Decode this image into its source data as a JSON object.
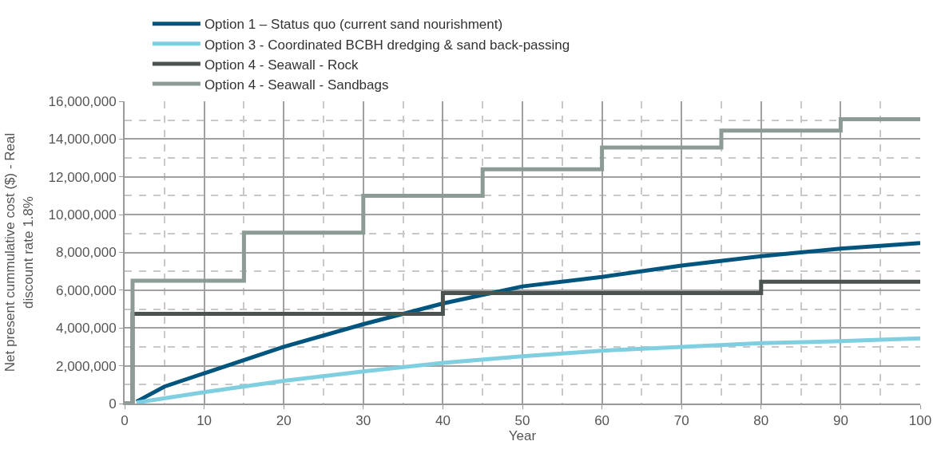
{
  "chart_data": {
    "type": "line",
    "xlabel": "Year",
    "ylabel": "Net present cummulative cost ($) - Real discount rate 1.8%",
    "xlim": [
      0,
      100
    ],
    "xticks": [
      0,
      10,
      20,
      30,
      40,
      50,
      60,
      70,
      80,
      90,
      100
    ],
    "ylim": [
      0,
      16000000
    ],
    "yticks": [
      {
        "value": 0,
        "label": "0"
      },
      {
        "value": 2000000,
        "label": "2,000,000"
      },
      {
        "value": 4000000,
        "label": "4,000,000"
      },
      {
        "value": 6000000,
        "label": "6,000,000"
      },
      {
        "value": 8000000,
        "label": "8,000,000"
      },
      {
        "value": 10000000,
        "label": "10,000,000"
      },
      {
        "value": 12000000,
        "label": "12,000,000"
      },
      {
        "value": 14000000,
        "label": "14,000,000"
      },
      {
        "value": 16000000,
        "label": "16,000,000"
      }
    ],
    "grid": true,
    "legend": "top left",
    "marker": "none",
    "line_style": "solid",
    "series": [
      {
        "name": "Option 1 – Status quo (current sand nourishment)",
        "color": "#00557f",
        "x": [
          1.5,
          5,
          10,
          20,
          30,
          40,
          50,
          60,
          70,
          80,
          90,
          100
        ],
        "values": [
          100000,
          900000,
          1600000,
          3000000,
          4200000,
          5300000,
          6200000,
          6700000,
          7300000,
          7800000,
          8200000,
          8500000
        ]
      },
      {
        "name": "Option 3 - Coordinated BCBH dredging & sand back-passing",
        "color": "#7fcfe0",
        "x": [
          1.5,
          10,
          20,
          30,
          40,
          50,
          60,
          70,
          80,
          90,
          100
        ],
        "values": [
          50000,
          600000,
          1200000,
          1700000,
          2150000,
          2500000,
          2800000,
          3000000,
          3200000,
          3300000,
          3450000
        ]
      },
      {
        "name": "Option 4 - Seawall - Rock",
        "color": "#4b5350",
        "type": "step",
        "x": [
          0,
          1,
          40,
          80,
          100
        ],
        "values": [
          0,
          4750000,
          5850000,
          6450000,
          6450000
        ]
      },
      {
        "name": "Option 4 - Seawall - Sandbags",
        "color": "#8c9c94",
        "type": "step",
        "x": [
          0,
          1,
          15,
          30,
          45,
          60,
          75,
          90,
          100
        ],
        "values": [
          0,
          6500000,
          9050000,
          11000000,
          12400000,
          13550000,
          14450000,
          15050000,
          15050000
        ]
      }
    ]
  }
}
